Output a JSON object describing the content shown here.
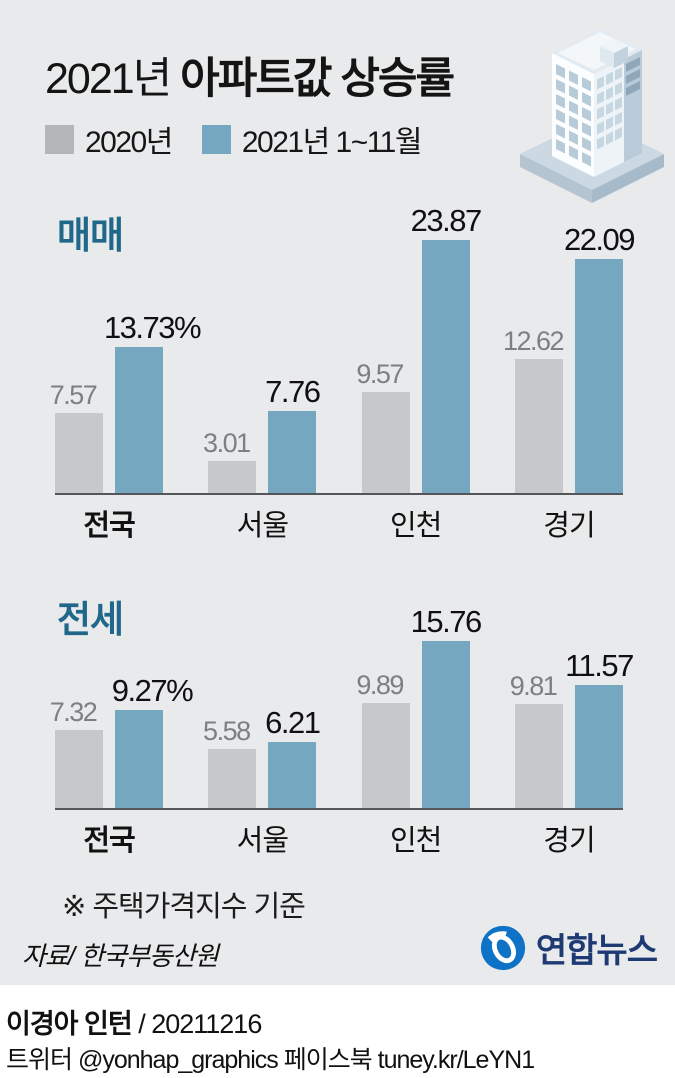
{
  "header": {
    "title_light": "2021년 ",
    "title_bold": "아파트값 상승률",
    "legend": [
      {
        "label": "2020년",
        "color": "#b4b5b7"
      },
      {
        "label": "2021년 1~11월",
        "color": "#76a7c0"
      }
    ]
  },
  "chart_data": [
    {
      "type": "bar",
      "section": "매매",
      "categories": [
        "전국",
        "서울",
        "인천",
        "경기"
      ],
      "series": [
        {
          "name": "2020년",
          "values": [
            7.57,
            3.01,
            9.57,
            12.62
          ],
          "labels": [
            "7.57",
            "3.01",
            "9.57",
            "12.62"
          ]
        },
        {
          "name": "2021년 1~11월",
          "values": [
            13.73,
            7.76,
            23.87,
            22.09
          ],
          "labels": [
            "13.73%",
            "7.76",
            "23.87",
            "22.09"
          ]
        }
      ],
      "unit": "%",
      "ylim": [
        0,
        23.87
      ],
      "legend_position": "top",
      "grid": false
    },
    {
      "type": "bar",
      "section": "전세",
      "categories": [
        "전국",
        "서울",
        "인천",
        "경기"
      ],
      "series": [
        {
          "name": "2020년",
          "values": [
            7.32,
            5.58,
            9.89,
            9.81
          ],
          "labels": [
            "7.32",
            "5.58",
            "9.89",
            "9.81"
          ]
        },
        {
          "name": "2021년 1~11월",
          "values": [
            9.27,
            6.21,
            15.76,
            11.57
          ],
          "labels": [
            "9.27%",
            "6.21",
            "15.76",
            "11.57"
          ]
        }
      ],
      "unit": "%",
      "ylim": [
        0,
        15.76
      ],
      "legend_position": "top",
      "grid": false
    }
  ],
  "footnote": "※ 주택가격지수  기준",
  "source": "자료/ 한국부동산원",
  "logo_text": "연합뉴스",
  "footer": {
    "credit_bold": "이경아 인턴",
    "credit_rest": " / 20211216",
    "social": "트위터 @yonhap_graphics  페이스북 tuney.kr/LeYN1"
  },
  "colors": {
    "background": "#e9eaec",
    "bar_2020": "#c7c8c9",
    "bar_2021": "#76a7c0",
    "section_heading": "#20688a",
    "value_2020_text": "#7e7f82",
    "value_2021_text": "#101012",
    "baseline": "#55565a",
    "logo_blue": "#0e72c6",
    "logo_navy": "#1d3a73"
  }
}
